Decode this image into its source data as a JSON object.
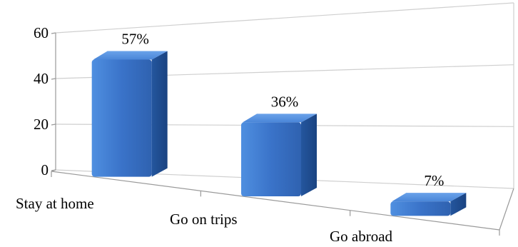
{
  "chart_data": {
    "type": "bar",
    "categories": [
      "Stay at home",
      "Go on trips",
      "Go abroad"
    ],
    "values": [
      57,
      36,
      7
    ],
    "data_labels": [
      "57%",
      "36%",
      "7%"
    ],
    "yticks": [
      "0",
      "20",
      "40",
      "60"
    ],
    "ylim": [
      0,
      60
    ],
    "grid": true,
    "three_d": true,
    "colors": {
      "bar_front": "#3a73c9",
      "bar_front_light": "#4f8fe0",
      "bar_side": "#1f4f94",
      "bar_top": "#5b95e3",
      "grid": "#cfcfcf",
      "axis": "#9a9a9a"
    }
  }
}
